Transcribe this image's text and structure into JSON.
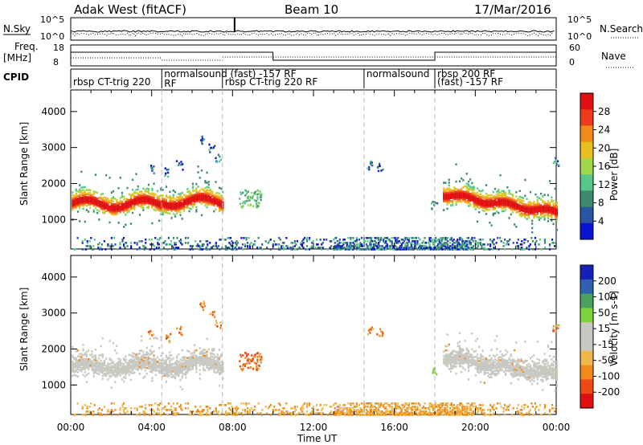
{
  "header": {
    "station": "Adak West (fitACF)",
    "beam": "Beam 10",
    "date": "17/Mar/2016"
  },
  "noise_panel": {
    "left_label": "N.Sky",
    "right_label": "N.Search",
    "left_ticks": [
      "10^5",
      "10^0"
    ],
    "right_ticks": [
      "10^5",
      "10^0"
    ]
  },
  "freq_panel": {
    "left_label_1": "Freq.",
    "left_label_2": "[MHz]",
    "right_label": "Nave",
    "left_ticks": [
      "18",
      "8"
    ],
    "right_ticks": [
      "60",
      "0"
    ]
  },
  "cpid": {
    "label": "CPID",
    "segments": [
      {
        "start": 0.0,
        "end": 4.5,
        "text": "rbsp CT-trig 220"
      },
      {
        "start": 4.5,
        "end": 7.5,
        "text": "normalsound (fast) -157 RF",
        "extra": "RF"
      },
      {
        "start": 7.5,
        "end": 14.5,
        "text": "rbsp CT-trig 220 RF"
      },
      {
        "start": 14.5,
        "end": 18.0,
        "text": "normalsound"
      },
      {
        "start": 18.0,
        "end": 24.0,
        "text": "(fast) -157 RF",
        "extra": "rbsp 200 RF"
      }
    ]
  },
  "colors": {
    "power": [
      "#0a14d2",
      "#2a55a0",
      "#3e8a6e",
      "#56c88a",
      "#a0d84a",
      "#e8c020",
      "#f08a1a",
      "#ee3a1a",
      "#e01010"
    ],
    "velocity": [
      "#e01010",
      "#f04a14",
      "#f08a1a",
      "#f0b84a",
      "#c8c8c0",
      "#c8c8c0",
      "#7ed23a",
      "#4aa060",
      "#3060b0",
      "#1420b8"
    ],
    "ground_scatter": "#c8c8c0"
  },
  "chart_data": [
    {
      "type": "heatmap",
      "title": "Power",
      "ylabel": "Slant Range [km]",
      "xlabel": "Time UT",
      "colorbar_label": "Power [dB]",
      "colorbar_ticks": [
        "4",
        "8",
        "12",
        "16",
        "20",
        "24",
        "28"
      ],
      "xlim": [
        0,
        24
      ],
      "ylim": [
        180,
        4600
      ],
      "xticks": [
        "00:00",
        "04:00",
        "08:00",
        "12:00",
        "16:00",
        "20:00",
        "00:00"
      ],
      "yticks": [
        "1000",
        "2000",
        "3000",
        "4000"
      ],
      "features": [
        {
          "name": "main band 0-7.5 UT",
          "t_start": 0.0,
          "t_end": 7.5,
          "r_center": 1400,
          "dB_peak": 30
        },
        {
          "name": "main band 18.5-24 UT",
          "t_start": 18.5,
          "t_end": 24.0,
          "r_center": 1350,
          "dB_peak": 30
        },
        {
          "name": "patch ~9 UT",
          "t": 8.9,
          "r": 1550,
          "dB": 16
        }
      ]
    },
    {
      "type": "heatmap",
      "title": "Velocity",
      "ylabel": "Slant Range [km]",
      "xlabel": "Time UT",
      "colorbar_label": "Velocity [m s-1]",
      "colorbar_ticks": [
        "200",
        "100",
        "50",
        "15",
        "-15",
        "-50",
        "-100",
        "-200"
      ],
      "xlim": [
        0,
        24
      ],
      "ylim": [
        180,
        4600
      ],
      "xticks": [
        "00:00",
        "04:00",
        "08:00",
        "12:00",
        "16:00",
        "20:00",
        "00:00"
      ],
      "yticks": [
        "1000",
        "2000",
        "3000",
        "4000"
      ],
      "features": [
        {
          "name": "ground scatter 0-7.5 UT",
          "t_start": 0.0,
          "t_end": 7.5,
          "r_center": 1500,
          "velocity": 0
        },
        {
          "name": "ground scatter 18.5-24 UT",
          "t_start": 18.5,
          "t_end": 24.0,
          "r_center": 1500,
          "velocity": 0
        },
        {
          "name": "patch ~9 UT",
          "t": 8.9,
          "r": 1550,
          "velocity": -70
        }
      ]
    }
  ],
  "axis_title": "Time UT"
}
